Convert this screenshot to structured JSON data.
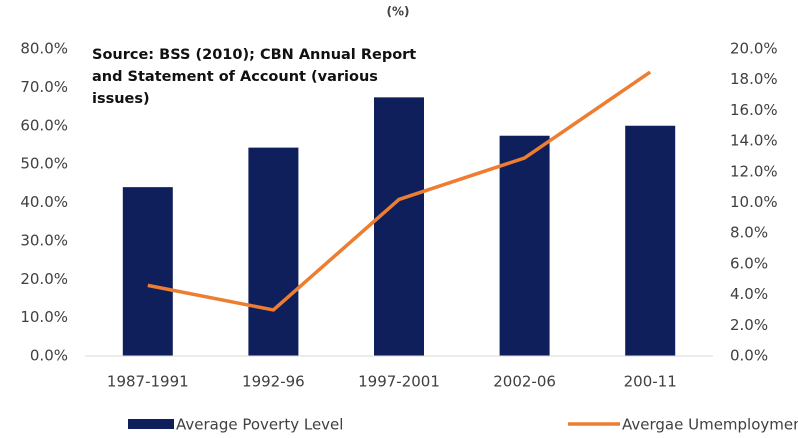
{
  "chart_data": {
    "type": "bar",
    "title": "(%)",
    "annotation": "Source: BSS (2010); CBN Annual Report and Statement of Account (various issues)",
    "categories": [
      "1987-1991",
      "1992-96",
      "1997-2001",
      "2002-06",
      "200-11"
    ],
    "series": [
      {
        "name": "Average Poverty Level",
        "type": "bar",
        "color": "#0f1f5c",
        "values": [
          44,
          54.3,
          67.4,
          57.4,
          60
        ]
      },
      {
        "name": "Avergae Umemployment Growth",
        "type": "line",
        "axis": "y2",
        "color": "#ed7d31",
        "values": [
          4.6,
          3.0,
          10.2,
          12.9,
          18.5
        ]
      }
    ],
    "ylim": [
      0,
      80
    ],
    "yticks": [
      {
        "value": 0,
        "label": "0.0%"
      },
      {
        "value": 10,
        "label": "10.0%"
      },
      {
        "value": 20,
        "label": "20.0%"
      },
      {
        "value": 30,
        "label": "30.0%"
      },
      {
        "value": 40,
        "label": "40.0%"
      },
      {
        "value": 50,
        "label": "50.0%"
      },
      {
        "value": 60,
        "label": "60.0%"
      },
      {
        "value": 70,
        "label": "70.0%"
      },
      {
        "value": 80,
        "label": "80.0%"
      }
    ],
    "y2lim": [
      0,
      20
    ],
    "y2ticks": [
      {
        "value": 0,
        "label": "0.0%"
      },
      {
        "value": 2,
        "label": "2.0%"
      },
      {
        "value": 4,
        "label": "4.0%"
      },
      {
        "value": 6,
        "label": "6.0%"
      },
      {
        "value": 8,
        "label": "8.0%"
      },
      {
        "value": 10,
        "label": "10.0%"
      },
      {
        "value": 12,
        "label": "12.0%"
      },
      {
        "value": 14,
        "label": "14.0%"
      },
      {
        "value": 16,
        "label": "16.0%"
      },
      {
        "value": 18,
        "label": "18.0%"
      },
      {
        "value": 20,
        "label": "20.0%"
      }
    ],
    "legend": "bottom"
  }
}
